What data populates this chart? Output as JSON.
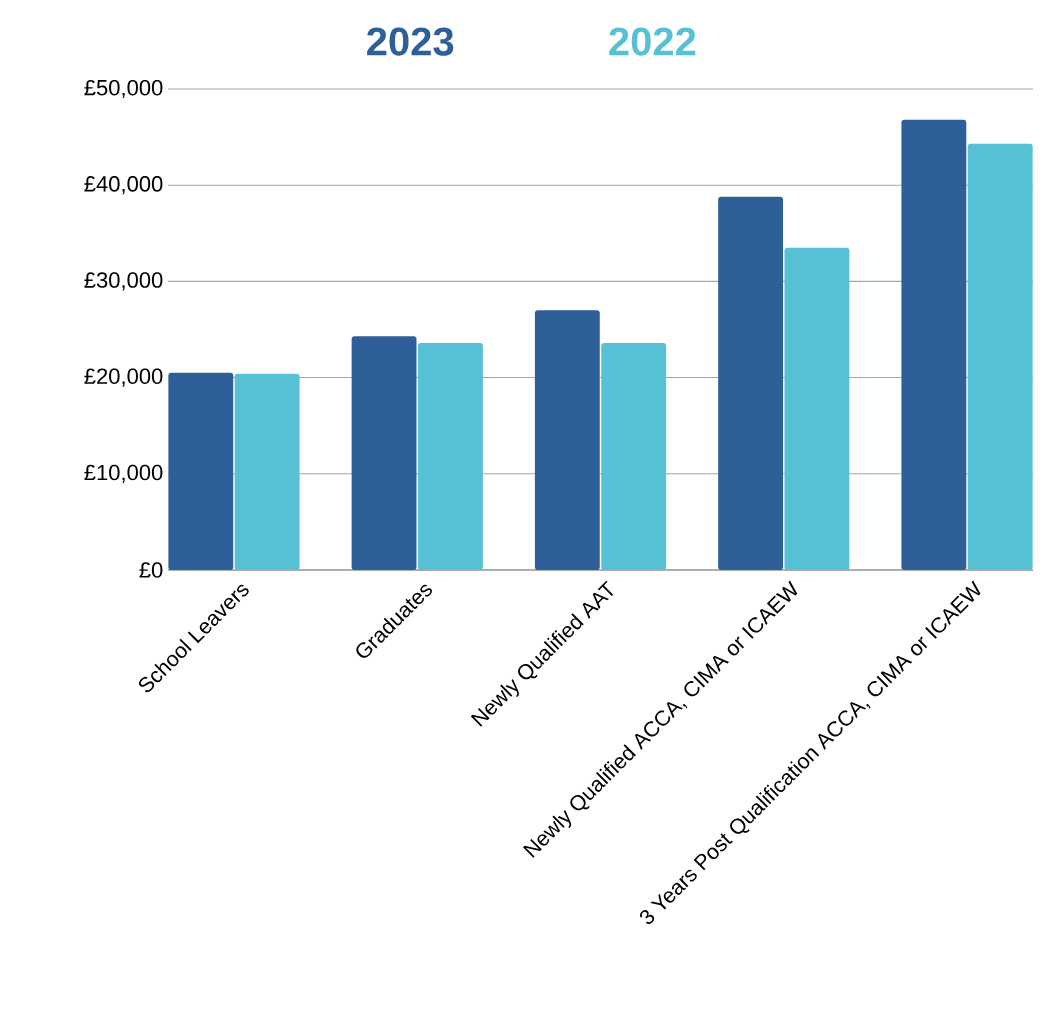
{
  "chart_data": {
    "type": "bar",
    "categories": [
      "School Leavers",
      "Graduates",
      "Newly Qualified AAT",
      "Newly Qualified ACCA, CIMA or ICAEW",
      "3 Years Post Qualification ACCA, CIMA or ICAEW"
    ],
    "series": [
      {
        "name": "2023",
        "color": "#2e5f98",
        "values": [
          20500,
          24300,
          27000,
          38800,
          46800
        ]
      },
      {
        "name": "2022",
        "color": "#56c0d4",
        "values": [
          20400,
          23600,
          23600,
          33500,
          44300
        ]
      }
    ],
    "ylim": [
      0,
      50000
    ],
    "yticks": [
      {
        "value": 0,
        "label": "£0"
      },
      {
        "value": 10000,
        "label": "£10,000"
      },
      {
        "value": 20000,
        "label": "£20,000"
      },
      {
        "value": 30000,
        "label": "£30,000"
      },
      {
        "value": 40000,
        "label": "£40,000"
      },
      {
        "value": 50000,
        "label": "£50,000"
      }
    ],
    "grid": "y",
    "legend": "top"
  }
}
